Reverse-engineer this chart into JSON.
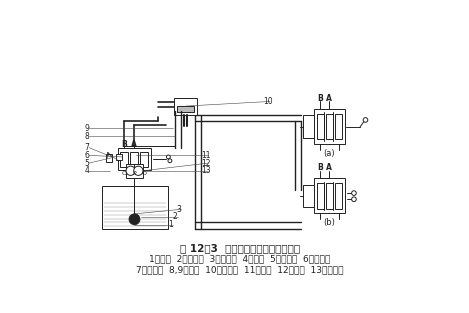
{
  "title": "图 12－3  打包机液压系统简易原理图",
  "caption_line1": "1－油箱  2－漏油器  3－吸油管  4－油管  5－溢流阀  6－节压阀",
  "caption_line2": "7－换向阀  8,9－管道  10－液压缸  11－油管  12－油泵  13－回油管",
  "bg_color": "#ffffff",
  "lc": "#222222"
}
